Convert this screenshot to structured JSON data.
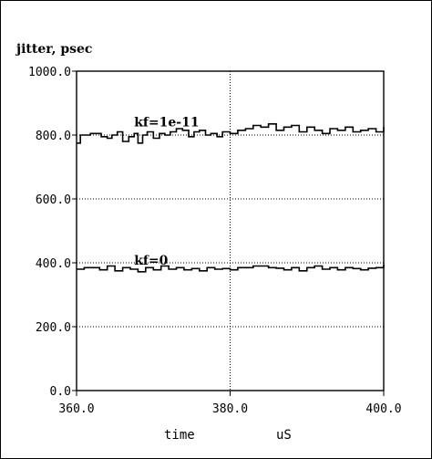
{
  "chart_data": {
    "type": "line",
    "title": "",
    "ylabel": "jitter, psec",
    "xlabel": "time",
    "xunit": "uS",
    "xlim": [
      360,
      400
    ],
    "ylim": [
      0,
      1000
    ],
    "xticks": [
      "360.0",
      "380.0",
      "400.0"
    ],
    "yticks": [
      "0.0",
      "200.0",
      "400.0",
      "600.0",
      "800.0",
      "1000.0"
    ],
    "grid": true,
    "series": [
      {
        "name": "kf=1e-11",
        "x": [
          360.0,
          360.5,
          361.2,
          361.8,
          362.5,
          363.2,
          364.0,
          364.6,
          365.3,
          366.0,
          366.8,
          367.5,
          368.0,
          368.6,
          369.2,
          370.0,
          370.8,
          371.5,
          372.2,
          373.0,
          373.8,
          374.6,
          375.3,
          376.0,
          376.8,
          377.5,
          378.3,
          379.0,
          380.0,
          381.0,
          382.0,
          383.0,
          384.0,
          385.0,
          386.0,
          387.0,
          388.0,
          389.0,
          390.0,
          391.0,
          392.0,
          393.0,
          394.0,
          395.0,
          396.0,
          397.0,
          398.0,
          399.0,
          400.0
        ],
        "y": [
          775,
          800,
          800,
          805,
          805,
          795,
          790,
          800,
          810,
          780,
          795,
          805,
          775,
          800,
          810,
          790,
          805,
          800,
          810,
          820,
          815,
          795,
          810,
          815,
          800,
          805,
          795,
          810,
          805,
          815,
          820,
          830,
          825,
          835,
          815,
          825,
          830,
          810,
          825,
          815,
          805,
          820,
          815,
          825,
          810,
          815,
          820,
          810,
          825
        ]
      },
      {
        "name": "kf=0",
        "x": [
          360.0,
          361.0,
          362.0,
          363.0,
          364.0,
          365.0,
          366.0,
          367.0,
          368.0,
          369.0,
          370.0,
          371.0,
          372.0,
          373.0,
          374.0,
          375.0,
          376.0,
          377.0,
          378.0,
          379.0,
          380.0,
          381.0,
          382.0,
          383.0,
          384.0,
          385.0,
          386.0,
          387.0,
          388.0,
          389.0,
          390.0,
          391.0,
          392.0,
          393.0,
          394.0,
          395.0,
          396.0,
          397.0,
          398.0,
          399.0,
          400.0
        ],
        "y": [
          380,
          385,
          385,
          378,
          390,
          375,
          385,
          380,
          372,
          385,
          378,
          390,
          380,
          385,
          378,
          382,
          375,
          385,
          380,
          382,
          378,
          385,
          385,
          390,
          390,
          385,
          383,
          378,
          385,
          375,
          385,
          390,
          380,
          385,
          378,
          385,
          382,
          378,
          383,
          385,
          395
        ]
      }
    ],
    "annotations": [
      "kf=1e-11",
      "kf=0"
    ]
  }
}
